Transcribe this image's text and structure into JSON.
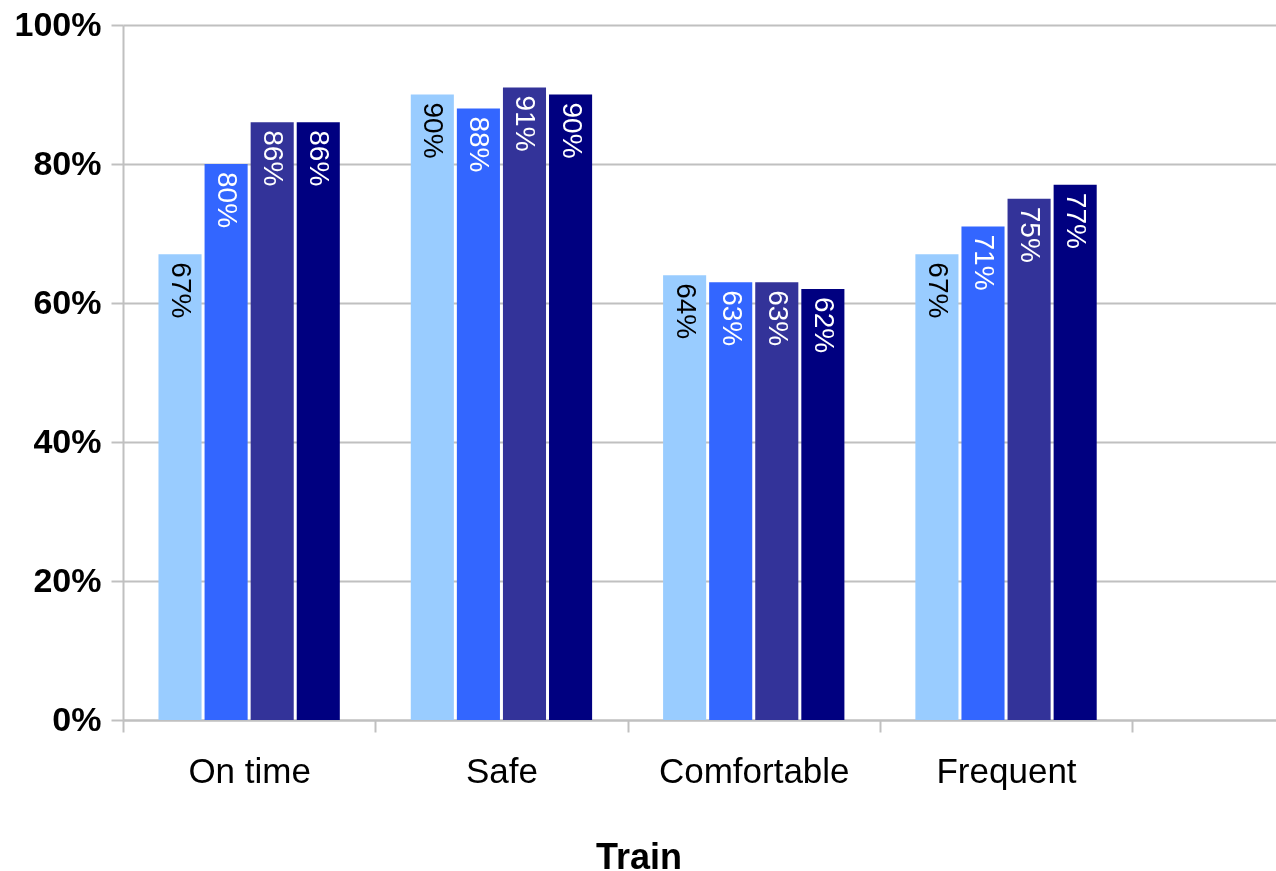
{
  "chart_data": {
    "type": "bar",
    "xlabel": "Train",
    "categories": [
      "On time",
      "Safe",
      "Comfortable",
      "Frequent"
    ],
    "series": [
      {
        "color": "#99ccff",
        "values": [
          67,
          90,
          64,
          67
        ],
        "value_labels": [
          "67%",
          "90%",
          "64%",
          "67%"
        ]
      },
      {
        "color": "#3366ff",
        "values": [
          80,
          88,
          63,
          71
        ],
        "value_labels": [
          "80%",
          "88%",
          "63%",
          "71%"
        ]
      },
      {
        "color": "#333399",
        "values": [
          86,
          91,
          63,
          75
        ],
        "value_labels": [
          "86%",
          "91%",
          "63%",
          "75%"
        ]
      },
      {
        "color": "#000080",
        "values": [
          86,
          90,
          62,
          77
        ],
        "value_labels": [
          "86%",
          "90%",
          "62%",
          "77%"
        ]
      }
    ],
    "ylim": [
      0,
      100
    ],
    "yticks": [
      {
        "value": 0,
        "label": "0%"
      },
      {
        "value": 20,
        "label": "20%"
      },
      {
        "value": 40,
        "label": "40%"
      },
      {
        "value": 60,
        "label": "60%"
      },
      {
        "value": 80,
        "label": "80%"
      },
      {
        "value": 100,
        "label": "100%"
      }
    ],
    "grid": "y",
    "legend": false
  }
}
